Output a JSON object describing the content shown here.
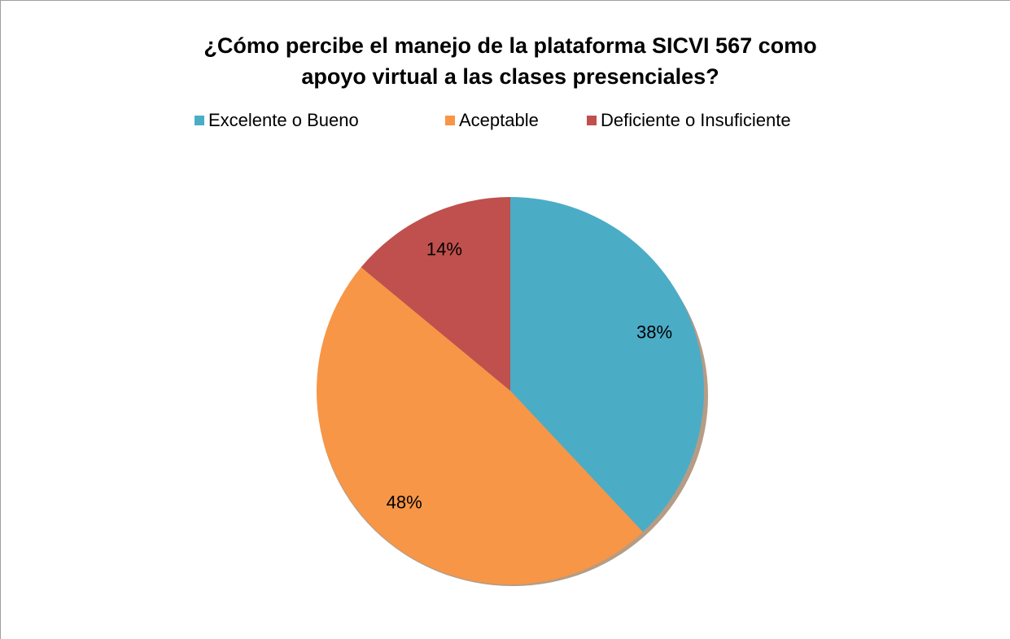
{
  "chart_data": {
    "type": "pie",
    "title": [
      "¿Cómo percibe el manejo de la plataforma  SICVI 567 como",
      "apoyo virtual a las clases presenciales?"
    ],
    "categories": [
      "Excelente o Bueno",
      "Aceptable",
      "Deficiente o Insuficiente"
    ],
    "values": [
      38,
      48,
      14
    ],
    "value_labels": [
      "38%",
      "48%",
      "14%"
    ],
    "colors": [
      "#4bacc6",
      "#f79646",
      "#c0504d"
    ],
    "legend": "top"
  }
}
